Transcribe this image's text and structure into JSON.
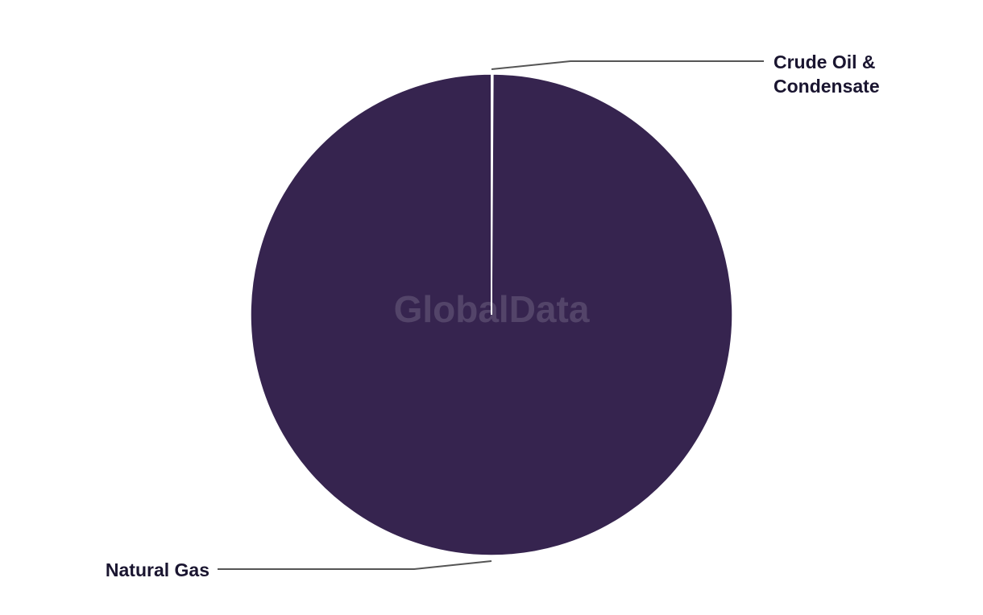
{
  "chart_data": {
    "type": "pie",
    "title": "",
    "slices": [
      {
        "label": "Crude Oil & Condensate",
        "label_lines": [
          "Crude Oil &",
          "Condensate"
        ],
        "value": 0.1,
        "color": "#36244f"
      },
      {
        "label": "Natural Gas",
        "label_lines": [
          "Natural Gas"
        ],
        "value": 99.9,
        "color": "#36244f"
      }
    ],
    "slice_separator_color": "#ffffff",
    "leader_line_color": "#555555",
    "watermark": "GlobalData"
  }
}
